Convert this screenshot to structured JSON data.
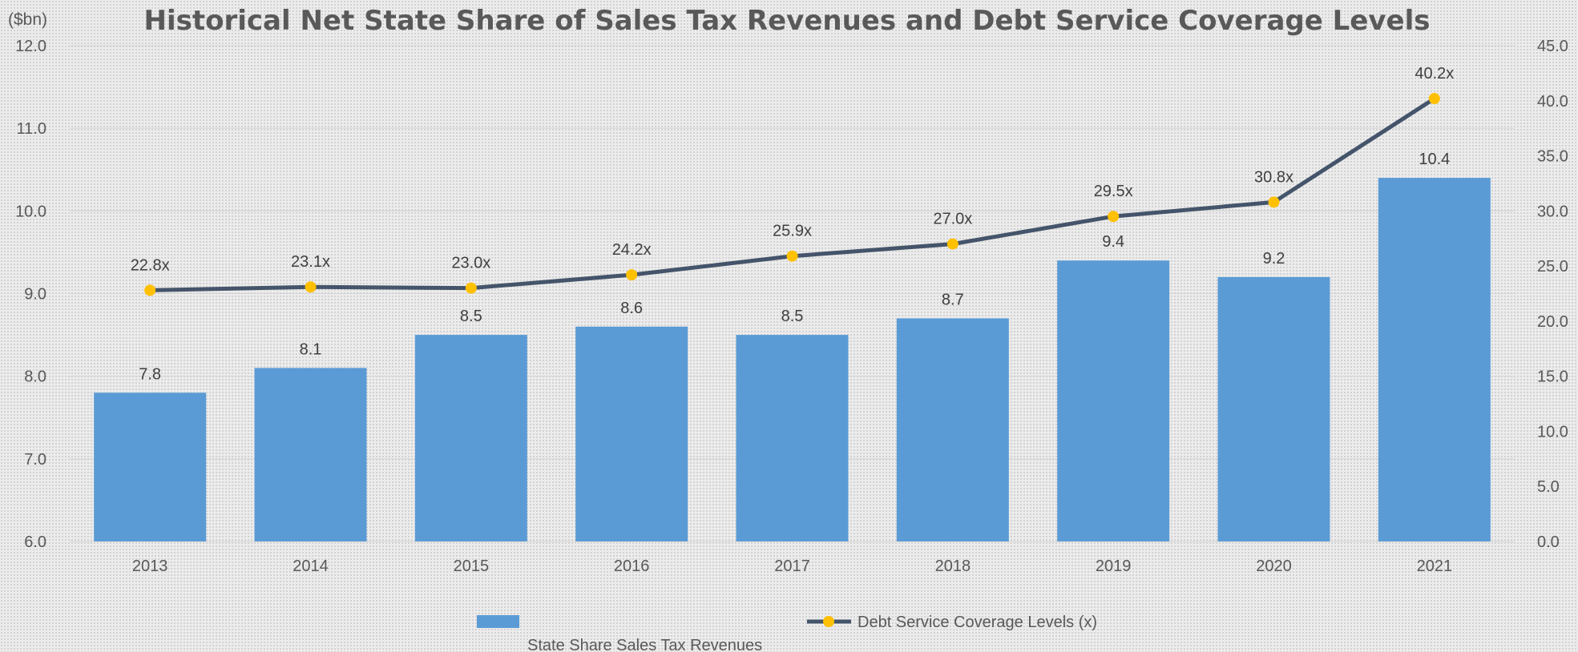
{
  "chart_data": {
    "type": "bar",
    "title": "Historical Net State Share of Sales Tax Revenues and Debt Service Coverage Levels",
    "y_unit_label": "($bn)",
    "categories": [
      "2013",
      "2014",
      "2015",
      "2016",
      "2017",
      "2018",
      "2019",
      "2020",
      "2021"
    ],
    "series": [
      {
        "name": "State Share Sales Tax Revenues",
        "kind": "bar",
        "axis": "left",
        "color": "#5b9bd5",
        "values": [
          7.8,
          8.1,
          8.5,
          8.6,
          8.5,
          8.7,
          9.4,
          9.2,
          10.4
        ],
        "labels": [
          "7.8",
          "8.1",
          "8.5",
          "8.6",
          "8.5",
          "8.7",
          "9.4",
          "9.2",
          "10.4"
        ]
      },
      {
        "name": "Debt Service Coverage Levels (x)",
        "kind": "line",
        "axis": "right",
        "color": "#44546a",
        "marker_color": "#ffc000",
        "values": [
          22.8,
          23.1,
          23.0,
          24.2,
          25.9,
          27.0,
          29.5,
          30.8,
          40.2
        ],
        "labels": [
          "22.8x",
          "23.1x",
          "23.0x",
          "24.2x",
          "25.9x",
          "27.0x",
          "29.5x",
          "30.8x",
          "40.2x"
        ]
      }
    ],
    "y_left": {
      "range": [
        6.0,
        12.0
      ],
      "ticks": [
        "6.0",
        "7.0",
        "8.0",
        "9.0",
        "10.0",
        "11.0",
        "12.0"
      ]
    },
    "y_right": {
      "range": [
        0.0,
        45.0
      ],
      "ticks": [
        "0.0",
        "5.0",
        "10.0",
        "15.0",
        "20.0",
        "25.0",
        "30.0",
        "35.0",
        "40.0",
        "45.0"
      ]
    },
    "grid": true,
    "legend_position": "bottom"
  }
}
